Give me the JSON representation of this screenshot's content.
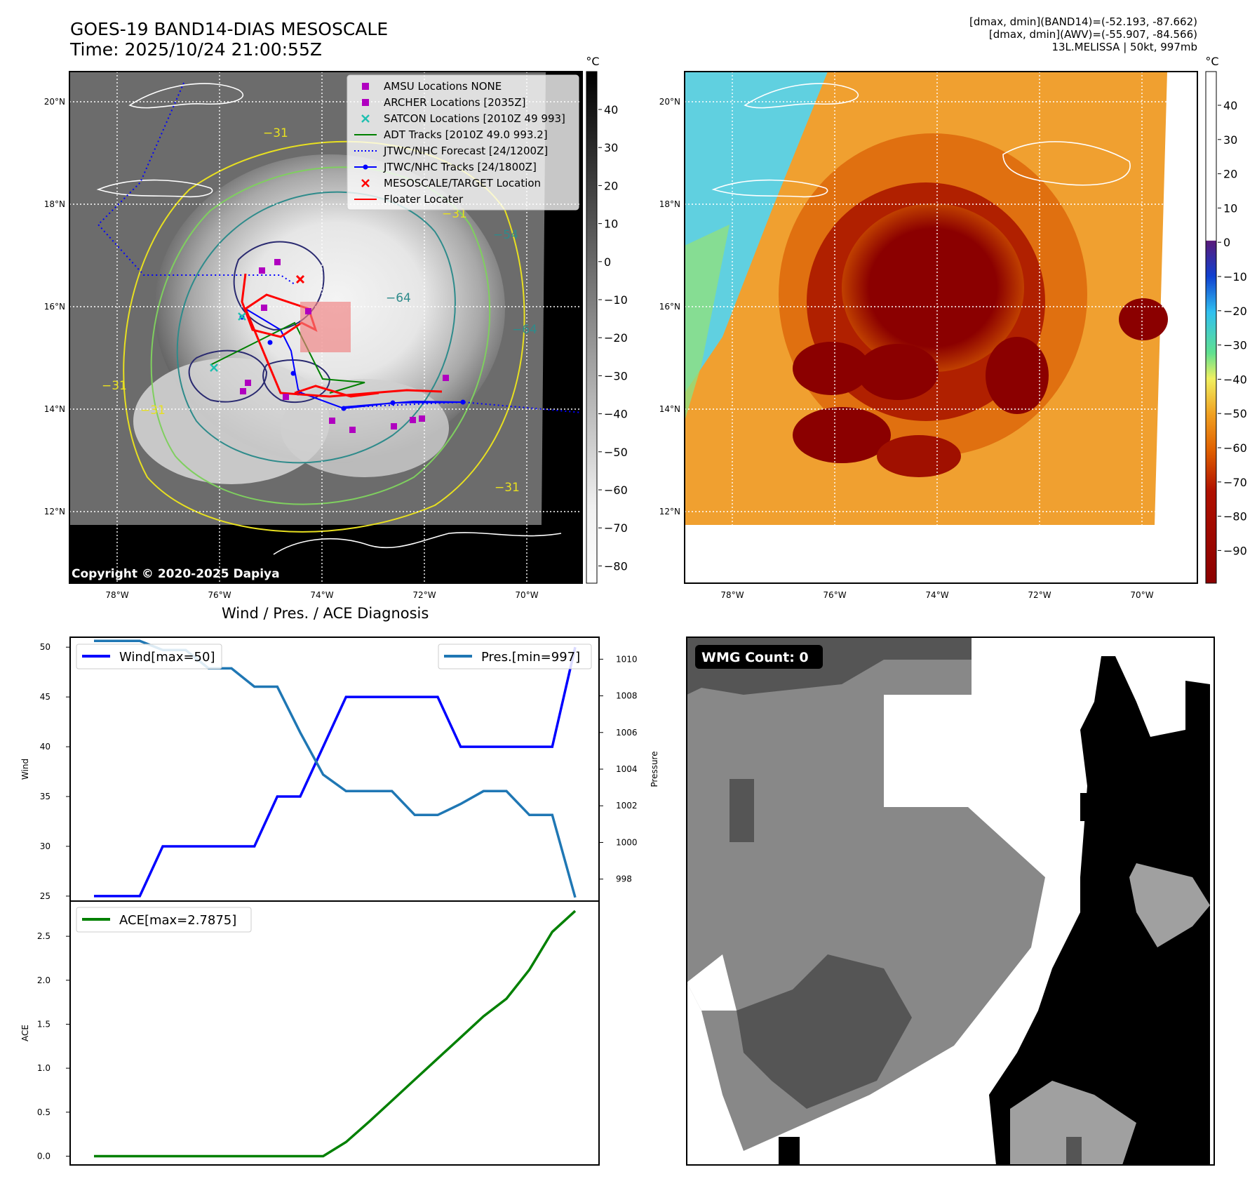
{
  "header": {
    "title_line1": "GOES-19 BAND14-DIAS MESOSCALE",
    "title_line2": "Time: 2025/10/24 21:00:55Z",
    "info_line1": "[dmax, dmin](BAND14)=(-52.193, -87.662)",
    "info_line2": "[dmax, dmin](AWV)=(-55.907, -84.566)",
    "info_line3": "13L.MELISSA | 50kt, 997mb"
  },
  "map_left": {
    "colorbar_unit": "°C",
    "colorbar_ticks": [
      "40",
      "30",
      "20",
      "10",
      "0",
      "−10",
      "−20",
      "−30",
      "−40",
      "−50",
      "−60",
      "−70",
      "−80"
    ],
    "lat_labels": [
      "20°N",
      "18°N",
      "16°N",
      "14°N",
      "12°N"
    ],
    "lon_labels": [
      "78°W",
      "76°W",
      "74°W",
      "72°W",
      "70°W"
    ],
    "copyright": "Copyright © 2020-2025 Dapiya",
    "contour_labels": [
      "−31",
      "−54",
      "−64",
      "−64",
      "−31",
      "−31",
      "−31",
      "−31"
    ],
    "legend": [
      {
        "label": "AMSU Locations NONE",
        "color": "#b000c0",
        "marker": "square"
      },
      {
        "label": "ARCHER Locations [2035Z]",
        "color": "#b000c0",
        "marker": "square"
      },
      {
        "label": "SATCON Locations [2010Z 49 993]",
        "color": "#20c0b0",
        "marker": "x"
      },
      {
        "label": "ADT Tracks [2010Z 49.0 993.2]",
        "color": "#008000",
        "marker": "line"
      },
      {
        "label": "JTWC/NHC Forecast [24/1200Z]",
        "color": "#0000ff",
        "marker": "dotted"
      },
      {
        "label": "JTWC/NHC Tracks [24/1800Z]",
        "color": "#0000ff",
        "marker": "line-dot"
      },
      {
        "label": "MESOSCALE/TARGET Location",
        "color": "#ff0000",
        "marker": "x"
      },
      {
        "label": "Floater Locater",
        "color": "#ff0000",
        "marker": "line"
      }
    ]
  },
  "map_right": {
    "colorbar_unit": "°C",
    "colorbar_ticks": [
      "40",
      "30",
      "20",
      "10",
      "0",
      "−10",
      "−20",
      "−30",
      "−40",
      "−50",
      "−60",
      "−70",
      "−80",
      "−90"
    ],
    "lat_labels": [
      "20°N",
      "18°N",
      "16°N",
      "14°N",
      "12°N"
    ],
    "lon_labels": [
      "78°W",
      "76°W",
      "74°W",
      "72°W",
      "70°W"
    ]
  },
  "wmg": {
    "badge": "WMG Count: 0"
  },
  "chart_data": [
    {
      "type": "line",
      "title": "Wind / Pres. / ACE Diagnosis",
      "ylabel": "Wind",
      "ylabel_right": "Pressure",
      "ylim": [
        24.5,
        51
      ],
      "ylim_right": [
        996.8,
        1011.2
      ],
      "yticks": [
        25,
        30,
        35,
        40,
        45,
        50
      ],
      "yticks_right": [
        998,
        1000,
        1002,
        1004,
        1006,
        1008,
        1010
      ],
      "x": [
        0,
        1,
        2,
        3,
        4,
        5,
        6,
        7,
        8,
        9,
        10,
        11,
        12,
        13,
        14,
        15,
        16,
        17,
        18,
        19,
        20,
        21
      ],
      "series": [
        {
          "name": "Wind[max=50]",
          "color": "#0000ff",
          "axis": "left",
          "values": [
            25,
            25,
            25,
            30,
            30,
            30,
            30,
            30,
            35,
            35,
            40,
            45,
            45,
            45,
            45,
            45,
            40,
            40,
            40,
            40,
            40,
            50
          ]
        },
        {
          "name": "Pres.[min=997]",
          "color": "#1f77b4",
          "axis": "right",
          "values": [
            1011,
            1011,
            1011,
            1010.5,
            1010.5,
            1009.5,
            1009.5,
            1008.5,
            1008.5,
            1006,
            1003.7,
            1002.8,
            1002.8,
            1002.8,
            1001.5,
            1001.5,
            1002.1,
            1002.8,
            1002.8,
            1001.5,
            1001.5,
            997
          ]
        }
      ]
    },
    {
      "type": "line",
      "ylabel": "ACE",
      "ylim": [
        -0.1,
        2.9
      ],
      "yticks": [
        0.0,
        0.5,
        1.0,
        1.5,
        2.0,
        2.5
      ],
      "x": [
        0,
        1,
        2,
        3,
        4,
        5,
        6,
        7,
        8,
        9,
        10,
        11,
        12,
        13,
        14,
        15,
        16,
        17,
        18,
        19,
        20,
        21
      ],
      "series": [
        {
          "name": "ACE[max=2.7875]",
          "color": "#008000",
          "values": [
            0,
            0,
            0,
            0,
            0,
            0,
            0,
            0,
            0,
            0,
            0,
            0.16,
            0.39,
            0.63,
            0.87,
            1.11,
            1.35,
            1.59,
            1.79,
            2.12,
            2.55,
            2.7875
          ]
        }
      ]
    }
  ]
}
